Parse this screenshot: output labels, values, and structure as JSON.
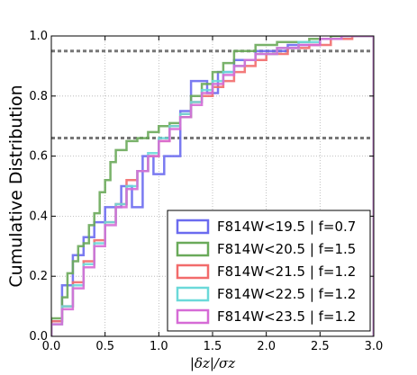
{
  "chart_data": {
    "type": "line",
    "title": "",
    "xlabel": "|δz|/σz",
    "ylabel": "Cumulative Distribution",
    "xlim": [
      0.0,
      3.0
    ],
    "ylim": [
      0.0,
      1.0
    ],
    "x_ticks": [
      "0.0",
      "0.5",
      "1.0",
      "1.5",
      "2.0",
      "2.5",
      "3.0"
    ],
    "y_ticks": [
      "0.0",
      "0.2",
      "0.4",
      "0.6",
      "0.8",
      "1.0"
    ],
    "grid": true,
    "legend_position": "lower-right",
    "reference_lines": [
      0.66,
      0.95
    ],
    "step": true,
    "series": [
      {
        "name": "F814W<19.5 | f=0.7",
        "color": "#6b6bef",
        "points": [
          [
            0,
            0
          ],
          [
            0,
            0.05
          ],
          [
            0.1,
            0.05
          ],
          [
            0.1,
            0.17
          ],
          [
            0.2,
            0.17
          ],
          [
            0.2,
            0.27
          ],
          [
            0.3,
            0.27
          ],
          [
            0.3,
            0.33
          ],
          [
            0.4,
            0.33
          ],
          [
            0.4,
            0.38
          ],
          [
            0.5,
            0.38
          ],
          [
            0.5,
            0.43
          ],
          [
            0.65,
            0.43
          ],
          [
            0.65,
            0.5
          ],
          [
            0.75,
            0.5
          ],
          [
            0.75,
            0.43
          ],
          [
            0.85,
            0.43
          ],
          [
            0.85,
            0.6
          ],
          [
            0.95,
            0.6
          ],
          [
            0.95,
            0.54
          ],
          [
            1.05,
            0.54
          ],
          [
            1.05,
            0.6
          ],
          [
            1.2,
            0.6
          ],
          [
            1.2,
            0.75
          ],
          [
            1.3,
            0.75
          ],
          [
            1.3,
            0.85
          ],
          [
            1.45,
            0.85
          ],
          [
            1.45,
            0.81
          ],
          [
            1.55,
            0.81
          ],
          [
            1.55,
            0.88
          ],
          [
            1.7,
            0.88
          ],
          [
            1.7,
            0.92
          ],
          [
            1.9,
            0.92
          ],
          [
            1.9,
            0.95
          ],
          [
            2.2,
            0.95
          ],
          [
            2.2,
            0.97
          ],
          [
            2.5,
            0.97
          ],
          [
            2.5,
            0.99
          ],
          [
            2.7,
            0.99
          ],
          [
            2.7,
            1.0
          ],
          [
            3.0,
            1.0
          ],
          [
            3.0,
            0.0
          ]
        ]
      },
      {
        "name": "F814W<20.5 | f=1.5",
        "color": "#6aaa5a",
        "points": [
          [
            0,
            0
          ],
          [
            0,
            0.06
          ],
          [
            0.1,
            0.06
          ],
          [
            0.1,
            0.13
          ],
          [
            0.15,
            0.13
          ],
          [
            0.15,
            0.21
          ],
          [
            0.2,
            0.21
          ],
          [
            0.2,
            0.25
          ],
          [
            0.25,
            0.25
          ],
          [
            0.25,
            0.3
          ],
          [
            0.3,
            0.3
          ],
          [
            0.3,
            0.31
          ],
          [
            0.35,
            0.31
          ],
          [
            0.35,
            0.37
          ],
          [
            0.4,
            0.37
          ],
          [
            0.4,
            0.41
          ],
          [
            0.45,
            0.41
          ],
          [
            0.45,
            0.48
          ],
          [
            0.5,
            0.48
          ],
          [
            0.5,
            0.52
          ],
          [
            0.55,
            0.52
          ],
          [
            0.55,
            0.58
          ],
          [
            0.6,
            0.58
          ],
          [
            0.6,
            0.62
          ],
          [
            0.7,
            0.62
          ],
          [
            0.7,
            0.65
          ],
          [
            0.8,
            0.65
          ],
          [
            0.8,
            0.66
          ],
          [
            0.9,
            0.66
          ],
          [
            0.9,
            0.68
          ],
          [
            1.0,
            0.68
          ],
          [
            1.0,
            0.7
          ],
          [
            1.1,
            0.7
          ],
          [
            1.1,
            0.71
          ],
          [
            1.2,
            0.71
          ],
          [
            1.2,
            0.73
          ],
          [
            1.3,
            0.73
          ],
          [
            1.3,
            0.8
          ],
          [
            1.4,
            0.8
          ],
          [
            1.4,
            0.84
          ],
          [
            1.5,
            0.84
          ],
          [
            1.5,
            0.88
          ],
          [
            1.6,
            0.88
          ],
          [
            1.6,
            0.91
          ],
          [
            1.7,
            0.91
          ],
          [
            1.7,
            0.95
          ],
          [
            1.9,
            0.95
          ],
          [
            1.9,
            0.97
          ],
          [
            2.1,
            0.97
          ],
          [
            2.1,
            0.98
          ],
          [
            2.4,
            0.98
          ],
          [
            2.4,
            0.99
          ],
          [
            2.6,
            0.99
          ],
          [
            2.6,
            1.0
          ],
          [
            3.0,
            1.0
          ],
          [
            3.0,
            0.0
          ]
        ]
      },
      {
        "name": "F814W<21.5 | f=1.2",
        "color": "#f26b6b",
        "points": [
          [
            0,
            0
          ],
          [
            0,
            0.05
          ],
          [
            0.1,
            0.05
          ],
          [
            0.1,
            0.1
          ],
          [
            0.2,
            0.1
          ],
          [
            0.2,
            0.18
          ],
          [
            0.3,
            0.18
          ],
          [
            0.3,
            0.25
          ],
          [
            0.4,
            0.25
          ],
          [
            0.4,
            0.32
          ],
          [
            0.5,
            0.32
          ],
          [
            0.5,
            0.38
          ],
          [
            0.6,
            0.38
          ],
          [
            0.6,
            0.44
          ],
          [
            0.7,
            0.44
          ],
          [
            0.7,
            0.52
          ],
          [
            0.8,
            0.52
          ],
          [
            0.8,
            0.55
          ],
          [
            0.9,
            0.55
          ],
          [
            0.9,
            0.6
          ],
          [
            1.0,
            0.6
          ],
          [
            1.0,
            0.65
          ],
          [
            1.1,
            0.65
          ],
          [
            1.1,
            0.7
          ],
          [
            1.2,
            0.7
          ],
          [
            1.2,
            0.74
          ],
          [
            1.3,
            0.74
          ],
          [
            1.3,
            0.78
          ],
          [
            1.4,
            0.78
          ],
          [
            1.4,
            0.8
          ],
          [
            1.5,
            0.8
          ],
          [
            1.5,
            0.83
          ],
          [
            1.6,
            0.83
          ],
          [
            1.6,
            0.85
          ],
          [
            1.7,
            0.85
          ],
          [
            1.7,
            0.88
          ],
          [
            1.8,
            0.88
          ],
          [
            1.8,
            0.9
          ],
          [
            1.9,
            0.9
          ],
          [
            1.9,
            0.92
          ],
          [
            2.0,
            0.92
          ],
          [
            2.0,
            0.94
          ],
          [
            2.2,
            0.94
          ],
          [
            2.2,
            0.96
          ],
          [
            2.4,
            0.96
          ],
          [
            2.4,
            0.97
          ],
          [
            2.6,
            0.97
          ],
          [
            2.6,
            0.99
          ],
          [
            2.8,
            0.99
          ],
          [
            2.8,
            1.0
          ],
          [
            3.0,
            1.0
          ],
          [
            3.0,
            0.0
          ]
        ]
      },
      {
        "name": "F814W<22.5 | f=1.2",
        "color": "#6bd9d9",
        "points": [
          [
            0,
            0
          ],
          [
            0,
            0.04
          ],
          [
            0.1,
            0.04
          ],
          [
            0.1,
            0.1
          ],
          [
            0.2,
            0.1
          ],
          [
            0.2,
            0.17
          ],
          [
            0.3,
            0.17
          ],
          [
            0.3,
            0.24
          ],
          [
            0.4,
            0.24
          ],
          [
            0.4,
            0.31
          ],
          [
            0.5,
            0.31
          ],
          [
            0.5,
            0.38
          ],
          [
            0.6,
            0.38
          ],
          [
            0.6,
            0.44
          ],
          [
            0.7,
            0.44
          ],
          [
            0.7,
            0.5
          ],
          [
            0.8,
            0.5
          ],
          [
            0.8,
            0.55
          ],
          [
            0.9,
            0.55
          ],
          [
            0.9,
            0.61
          ],
          [
            1.0,
            0.61
          ],
          [
            1.0,
            0.66
          ],
          [
            1.1,
            0.66
          ],
          [
            1.1,
            0.7
          ],
          [
            1.2,
            0.7
          ],
          [
            1.2,
            0.74
          ],
          [
            1.3,
            0.74
          ],
          [
            1.3,
            0.78
          ],
          [
            1.4,
            0.78
          ],
          [
            1.4,
            0.82
          ],
          [
            1.5,
            0.82
          ],
          [
            1.5,
            0.85
          ],
          [
            1.6,
            0.85
          ],
          [
            1.6,
            0.88
          ],
          [
            1.7,
            0.88
          ],
          [
            1.7,
            0.9
          ],
          [
            1.8,
            0.9
          ],
          [
            1.8,
            0.92
          ],
          [
            1.9,
            0.92
          ],
          [
            1.9,
            0.94
          ],
          [
            2.1,
            0.94
          ],
          [
            2.1,
            0.96
          ],
          [
            2.3,
            0.96
          ],
          [
            2.3,
            0.98
          ],
          [
            2.5,
            0.98
          ],
          [
            2.5,
            0.99
          ],
          [
            2.7,
            0.99
          ],
          [
            2.7,
            1.0
          ],
          [
            3.0,
            1.0
          ],
          [
            3.0,
            0.0
          ]
        ]
      },
      {
        "name": "F814W<23.5 | f=1.2",
        "color": "#d66bd6",
        "points": [
          [
            0,
            0
          ],
          [
            0,
            0.04
          ],
          [
            0.1,
            0.04
          ],
          [
            0.1,
            0.09
          ],
          [
            0.2,
            0.09
          ],
          [
            0.2,
            0.16
          ],
          [
            0.3,
            0.16
          ],
          [
            0.3,
            0.23
          ],
          [
            0.4,
            0.23
          ],
          [
            0.4,
            0.3
          ],
          [
            0.5,
            0.3
          ],
          [
            0.5,
            0.37
          ],
          [
            0.6,
            0.37
          ],
          [
            0.6,
            0.43
          ],
          [
            0.7,
            0.43
          ],
          [
            0.7,
            0.49
          ],
          [
            0.8,
            0.49
          ],
          [
            0.8,
            0.55
          ],
          [
            0.9,
            0.55
          ],
          [
            0.9,
            0.6
          ],
          [
            1.0,
            0.6
          ],
          [
            1.0,
            0.65
          ],
          [
            1.1,
            0.65
          ],
          [
            1.1,
            0.69
          ],
          [
            1.2,
            0.69
          ],
          [
            1.2,
            0.73
          ],
          [
            1.3,
            0.73
          ],
          [
            1.3,
            0.77
          ],
          [
            1.4,
            0.77
          ],
          [
            1.4,
            0.81
          ],
          [
            1.5,
            0.81
          ],
          [
            1.5,
            0.84
          ],
          [
            1.6,
            0.84
          ],
          [
            1.6,
            0.87
          ],
          [
            1.7,
            0.87
          ],
          [
            1.7,
            0.9
          ],
          [
            1.8,
            0.9
          ],
          [
            1.8,
            0.92
          ],
          [
            1.9,
            0.92
          ],
          [
            1.9,
            0.94
          ],
          [
            2.1,
            0.94
          ],
          [
            2.1,
            0.96
          ],
          [
            2.3,
            0.96
          ],
          [
            2.3,
            0.97
          ],
          [
            2.5,
            0.97
          ],
          [
            2.5,
            0.99
          ],
          [
            2.7,
            0.99
          ],
          [
            2.7,
            1.0
          ],
          [
            3.0,
            1.0
          ],
          [
            3.0,
            0.0
          ]
        ]
      }
    ]
  }
}
